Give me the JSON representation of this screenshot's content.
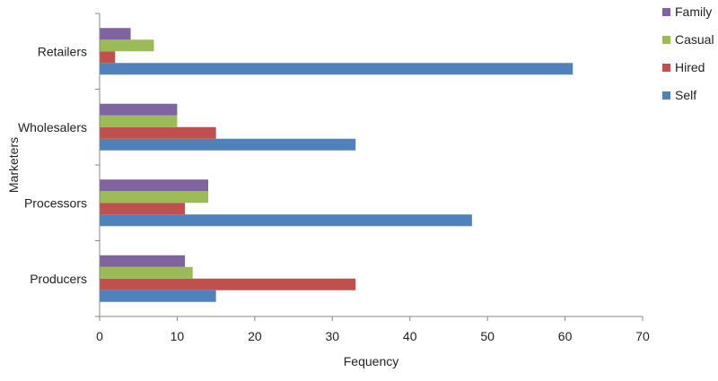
{
  "chart_data": {
    "type": "bar",
    "orientation": "horizontal",
    "title": "",
    "xlabel": "Fequency",
    "ylabel": "Marketers",
    "categories": [
      "Producers",
      "Processors",
      "Wholesalers",
      "Retailers"
    ],
    "series": [
      {
        "name": "Self",
        "color": "#4F81BD",
        "values": [
          15,
          48,
          33,
          61
        ]
      },
      {
        "name": "Hired",
        "color": "#C0504D",
        "values": [
          33,
          11,
          15,
          2
        ]
      },
      {
        "name": "Casual",
        "color": "#9BBB59",
        "values": [
          12,
          14,
          10,
          7
        ]
      },
      {
        "name": "Family",
        "color": "#8064A2",
        "values": [
          11,
          14,
          10,
          4
        ]
      }
    ],
    "xlim": [
      0,
      70
    ],
    "xticks": [
      0,
      10,
      20,
      30,
      40,
      50,
      60,
      70
    ],
    "grid": false,
    "legend": {
      "placement": "right",
      "order": [
        "Family",
        "Casual",
        "Hired",
        "Self"
      ]
    }
  }
}
